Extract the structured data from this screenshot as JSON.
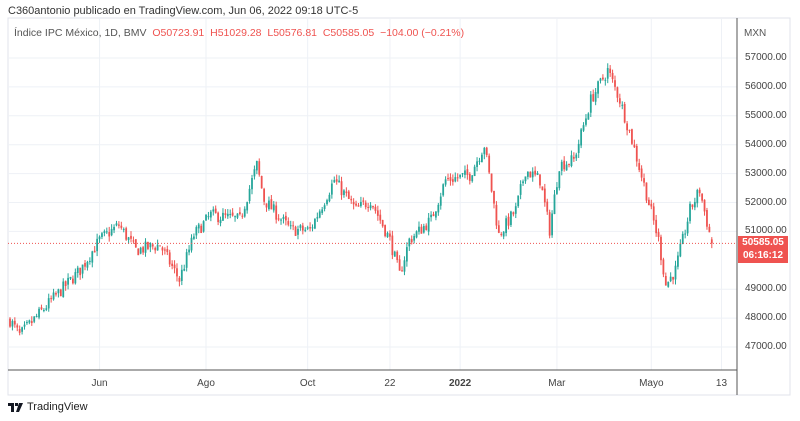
{
  "header": {
    "published": "C360antonio publicado en TradingView.com, Jun 06, 2022 09:18 UTC-5",
    "symbol": "Índice IPC México, 1D, BMV",
    "open": "O50723.91",
    "high": "H51029.28",
    "low": "L50576.81",
    "close": "C50585.05",
    "change": "−104.00 (−0.21%)"
  },
  "footer": {
    "brand": "TradingView"
  },
  "colors": {
    "up": "#26a69a",
    "down": "#ef5350",
    "grid": "#eef1f6"
  },
  "chart_data": {
    "type": "candlestick",
    "currency": "MXN",
    "last_price": "50585.05",
    "countdown": "06:16:12",
    "ylim": [
      46300,
      58400
    ],
    "y_ticks": [
      {
        "value": 57000,
        "label": "57000.00"
      },
      {
        "value": 56000,
        "label": "56000.00"
      },
      {
        "value": 55000,
        "label": "55000.00"
      },
      {
        "value": 54000,
        "label": "54000.00"
      },
      {
        "value": 53000,
        "label": "53000.00"
      },
      {
        "value": 52000,
        "label": "52000.00"
      },
      {
        "value": 51000,
        "label": "51000.00"
      },
      {
        "value": 49000,
        "label": "49000.00"
      },
      {
        "value": 48000,
        "label": "48000.00"
      },
      {
        "value": 47000,
        "label": "47000.00"
      }
    ],
    "x_ticks": [
      {
        "day": 37,
        "label": "Jun"
      },
      {
        "day": 81,
        "label": "Ago"
      },
      {
        "day": 123,
        "label": "Oct"
      },
      {
        "day": 157,
        "label": "22"
      },
      {
        "day": 186,
        "label": "2022"
      },
      {
        "day": 226,
        "label": "Mar"
      },
      {
        "day": 265,
        "label": "Mayo"
      },
      {
        "day": 294,
        "label": "13"
      }
    ],
    "close_path": [
      [
        0,
        47930
      ],
      [
        4,
        47400
      ],
      [
        17,
        48600
      ],
      [
        29,
        49660
      ],
      [
        37,
        50700
      ],
      [
        45,
        51220
      ],
      [
        52,
        50350
      ],
      [
        62,
        50530
      ],
      [
        70,
        49320
      ],
      [
        76,
        50870
      ],
      [
        83,
        51570
      ],
      [
        95,
        51400
      ],
      [
        102,
        53300
      ],
      [
        105,
        52090
      ],
      [
        116,
        51050
      ],
      [
        124,
        51050
      ],
      [
        134,
        52780
      ],
      [
        143,
        51740
      ],
      [
        149,
        52090
      ],
      [
        157,
        50700
      ],
      [
        161,
        49490
      ],
      [
        165,
        50700
      ],
      [
        174,
        51400
      ],
      [
        180,
        52780
      ],
      [
        190,
        52950
      ],
      [
        196,
        53990
      ],
      [
        202,
        50870
      ],
      [
        209,
        51740
      ],
      [
        213,
        53120
      ],
      [
        219,
        52780
      ],
      [
        223,
        51050
      ],
      [
        227,
        53300
      ],
      [
        233,
        53470
      ],
      [
        240,
        55550
      ],
      [
        247,
        56580
      ],
      [
        252,
        55550
      ],
      [
        257,
        54160
      ],
      [
        262,
        52610
      ],
      [
        268,
        50700
      ],
      [
        271,
        49150
      ],
      [
        275,
        49660
      ],
      [
        281,
        51740
      ],
      [
        285,
        52430
      ],
      [
        290,
        50585
      ]
    ]
  }
}
